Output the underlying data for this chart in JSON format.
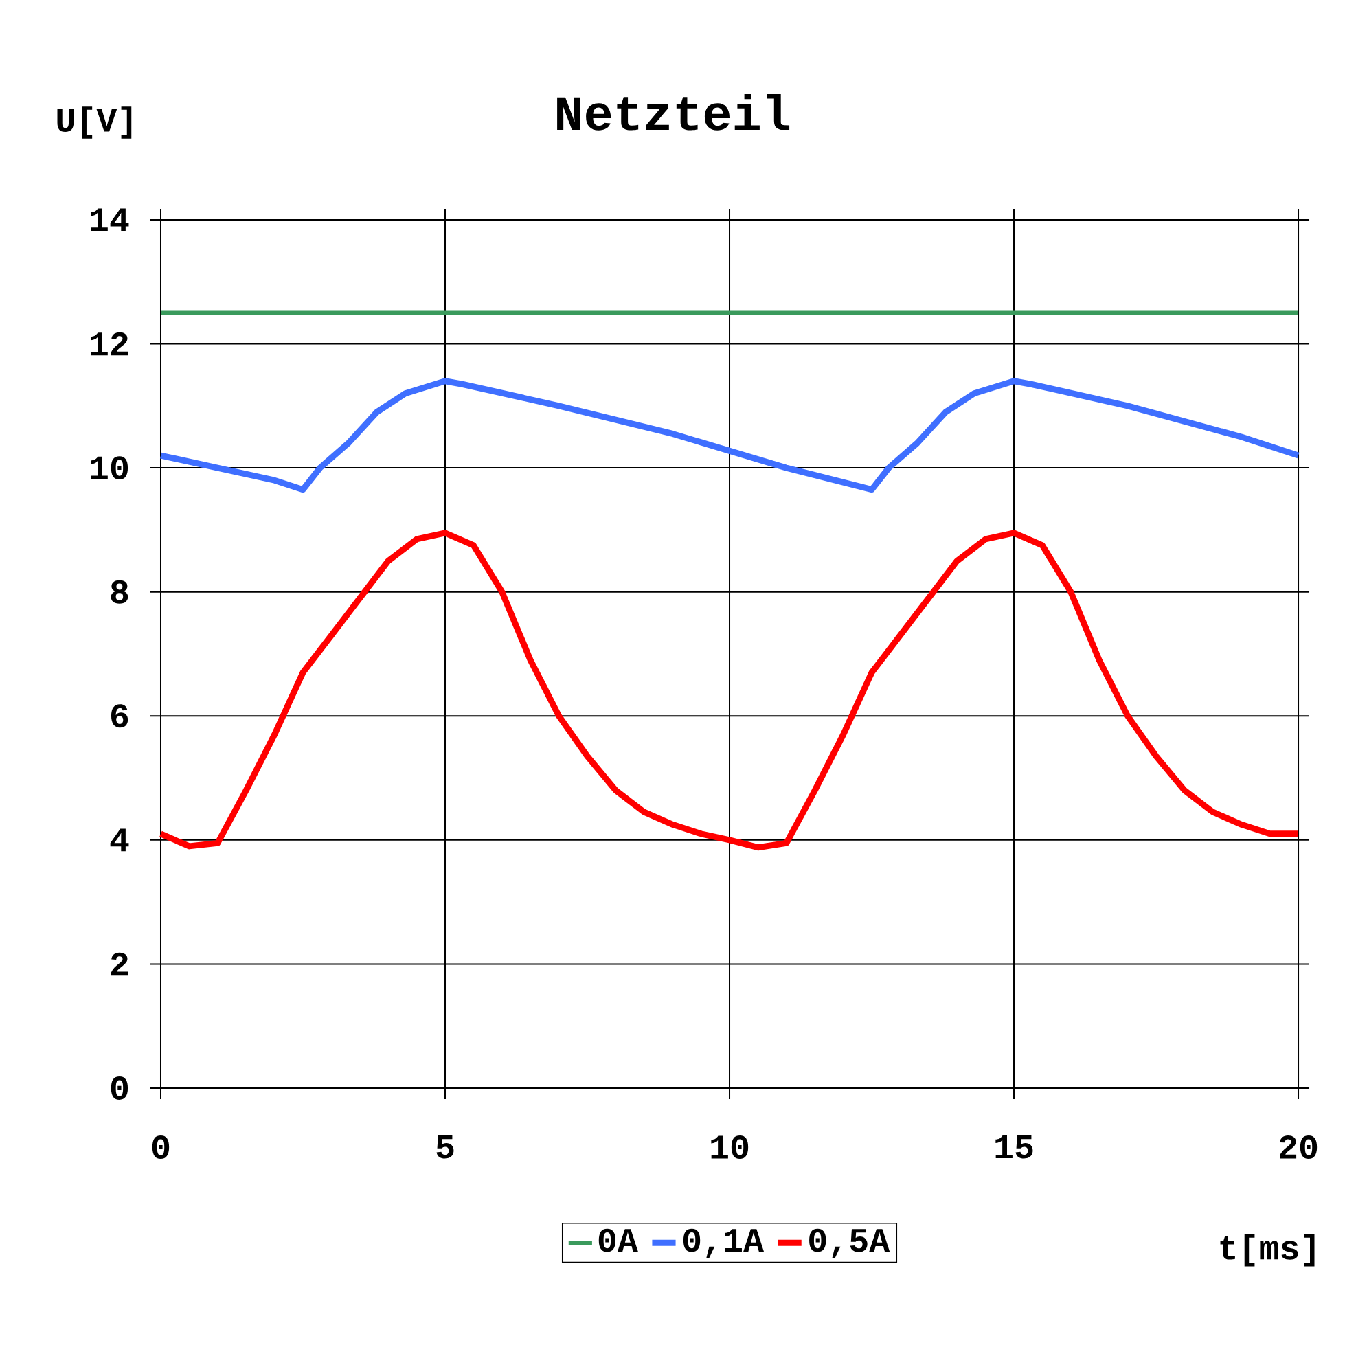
{
  "chart_data": {
    "type": "line",
    "title": "Netzteil",
    "xlabel": "t[ms]",
    "ylabel": "U[V]",
    "xlim": [
      0,
      20
    ],
    "ylim": [
      0,
      14
    ],
    "xticks": [
      0,
      5,
      10,
      15,
      20
    ],
    "yticks": [
      0,
      2,
      4,
      6,
      8,
      10,
      12,
      14
    ],
    "grid": true,
    "legend": "bottom",
    "marker": "none",
    "line_style": "solid",
    "series": [
      {
        "name": "0A",
        "color": "#3a9a5c",
        "x": [
          0,
          20
        ],
        "values": [
          12.5,
          12.5
        ]
      },
      {
        "name": "0,1A",
        "color": "#3f6fff",
        "x": [
          0,
          1,
          2,
          2.5,
          2.8,
          3.3,
          3.8,
          4.3,
          5,
          5.3,
          7,
          9,
          11,
          12.5,
          12.8,
          13.3,
          13.8,
          14.3,
          15,
          15.3,
          17,
          19,
          20
        ],
        "values": [
          10.2,
          10.0,
          9.8,
          9.65,
          10.0,
          10.4,
          10.9,
          11.2,
          11.4,
          11.35,
          11.0,
          10.55,
          10.0,
          9.65,
          10.0,
          10.4,
          10.9,
          11.2,
          11.4,
          11.35,
          11.0,
          10.5,
          10.2
        ]
      },
      {
        "name": "0,5A",
        "color": "#ff0000",
        "x": [
          0,
          0.5,
          1,
          1.5,
          2,
          2.5,
          3,
          3.5,
          4,
          4.5,
          5,
          5.5,
          6,
          6.5,
          7,
          7.5,
          8,
          8.5,
          9,
          9.5,
          10,
          10.5,
          11,
          11.5,
          12,
          12.5,
          13,
          13.5,
          14,
          14.5,
          15,
          15.5,
          16,
          16.5,
          17,
          17.5,
          18,
          18.5,
          19,
          19.5,
          20
        ],
        "values": [
          4.1,
          3.9,
          3.95,
          4.8,
          5.7,
          6.7,
          7.3,
          7.9,
          8.5,
          8.85,
          8.95,
          8.75,
          8.0,
          6.9,
          6.0,
          5.35,
          4.8,
          4.45,
          4.25,
          4.1,
          4.0,
          3.88,
          3.95,
          4.8,
          5.7,
          6.7,
          7.3,
          7.9,
          8.5,
          8.85,
          8.95,
          8.75,
          8.0,
          6.9,
          6.0,
          5.35,
          4.8,
          4.45,
          4.25,
          4.1,
          4.1
        ]
      }
    ]
  }
}
